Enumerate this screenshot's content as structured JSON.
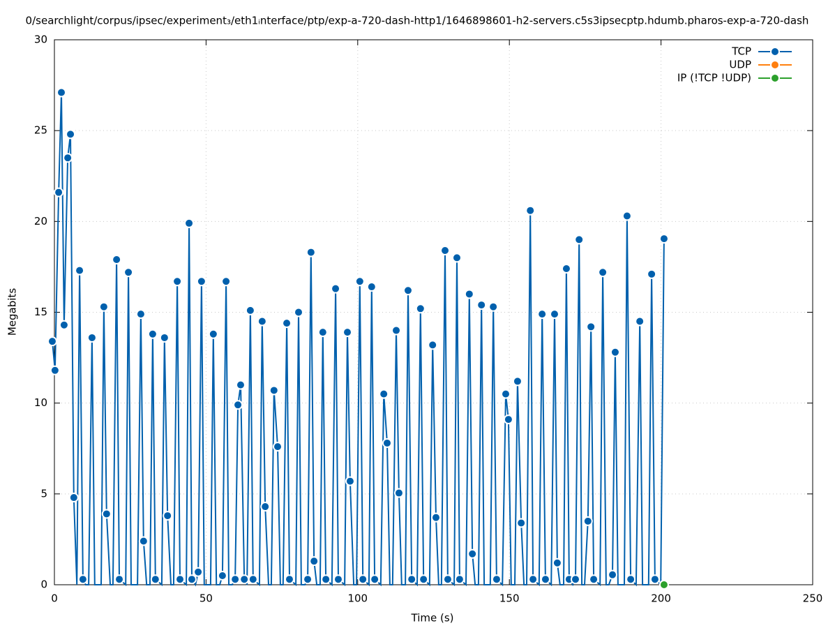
{
  "chart_data": {
    "type": "line",
    "title": "0/searchlight/corpus/ipsec/experiment₃/eth1ᵢnterface/ptp/exp-a-720-dash-http1/1646898601-h2-servers.c5s3ipsecptp.hdumb.pharos-exp-a-720-dash",
    "x_label": "Time (s)",
    "y_label": "Megabits",
    "xlim": [
      0,
      250
    ],
    "xticks": [
      0,
      50,
      100,
      150,
      200,
      250
    ],
    "ylim": [
      0,
      30
    ],
    "yticks": [
      0,
      5,
      10,
      15,
      20,
      25,
      30
    ],
    "grid": true,
    "legend": "top-right",
    "series": [
      {
        "name": "TCP",
        "color": "#0060ad",
        "x": [
          -0.7,
          0.2,
          1.4,
          2.3,
          3.2,
          4.4,
          5.3,
          6.4,
          7.4,
          8.3,
          9.4,
          10.3,
          11.3,
          12.4,
          13.3,
          15.4,
          16.3,
          17.2,
          18.4,
          19.3,
          20.5,
          21.4,
          23.5,
          24.4,
          25.3,
          27.4,
          28.5,
          29.4,
          30.4,
          31.5,
          32.4,
          33.3,
          35.4,
          36.3,
          37.3,
          38.4,
          39.3,
          40.5,
          41.4,
          43.5,
          44.4,
          45.3,
          46.5,
          47.4,
          48.5,
          49.4,
          51.5,
          52.4,
          53.4,
          54.5,
          55.4,
          56.6,
          57.5,
          58.6,
          59.6,
          60.5,
          61.4,
          62.6,
          63.5,
          64.6,
          65.5,
          67.6,
          68.5,
          69.5,
          70.6,
          71.5,
          72.4,
          73.6,
          74.5,
          75.4,
          76.6,
          77.5,
          79.6,
          80.5,
          81.4,
          82.6,
          83.5,
          84.6,
          85.6,
          86.5,
          87.6,
          88.5,
          89.5,
          91.5,
          92.7,
          93.6,
          95.7,
          96.6,
          97.5,
          98.7,
          99.6,
          100.7,
          101.7,
          103.7,
          104.6,
          105.6,
          107.6,
          108.6,
          109.7,
          110.6,
          111.5,
          112.7,
          113.6,
          114.5,
          115.7,
          116.6,
          117.8,
          119.6,
          120.7,
          121.7,
          123.7,
          124.7,
          125.8,
          126.7,
          127.6,
          128.8,
          129.7,
          131.8,
          132.7,
          133.6,
          135.7,
          136.8,
          137.8,
          138.7,
          139.8,
          140.8,
          141.7,
          143.7,
          144.7,
          145.8,
          147.7,
          148.8,
          149.7,
          150.6,
          151.8,
          152.7,
          153.9,
          154.8,
          155.7,
          156.9,
          157.8,
          159.8,
          160.8,
          161.9,
          163.8,
          164.9,
          165.8,
          166.7,
          167.9,
          168.8,
          169.7,
          170.9,
          171.8,
          173.0,
          173.9,
          174.8,
          175.9,
          176.9,
          177.8,
          179.9,
          180.8,
          181.9,
          182.8,
          184.0,
          184.9,
          185.8,
          187.9,
          188.8,
          190.0,
          191.8,
          193.0,
          193.9,
          195.9,
          196.9,
          198.0,
          199.9,
          201.0
        ],
        "values": [
          13.4,
          11.8,
          21.6,
          27.1,
          14.3,
          23.5,
          24.8,
          4.8,
          0,
          17.3,
          0.3,
          0,
          0,
          13.6,
          0,
          0,
          15.3,
          3.9,
          0,
          0,
          17.9,
          0.3,
          0,
          17.2,
          0,
          0,
          14.9,
          2.4,
          0,
          0,
          13.8,
          0.3,
          0,
          13.6,
          3.8,
          0,
          0,
          16.7,
          0.3,
          0,
          19.9,
          0.3,
          0,
          0.7,
          16.7,
          0,
          0,
          13.8,
          0,
          0,
          0.5,
          16.7,
          0,
          0,
          0.3,
          9.9,
          11,
          0.3,
          0,
          15.1,
          0.3,
          0,
          14.5,
          4.3,
          0,
          0,
          10.7,
          7.6,
          0,
          0,
          14.4,
          0.3,
          0,
          15,
          0,
          0,
          0.3,
          18.3,
          1.3,
          0,
          0,
          13.9,
          0.3,
          0,
          16.3,
          0.3,
          0,
          13.9,
          5.7,
          0,
          0,
          16.7,
          0.3,
          0,
          16.4,
          0.3,
          0,
          10.5,
          7.8,
          0,
          0,
          14,
          5.05,
          0,
          0,
          16.2,
          0.3,
          0,
          15.2,
          0.3,
          0,
          13.2,
          3.7,
          0,
          0,
          18.4,
          0.3,
          0,
          18,
          0.3,
          0,
          16,
          1.7,
          0,
          0,
          15.4,
          0,
          0,
          15.3,
          0.3,
          0,
          10.5,
          9.1,
          0,
          0,
          11.2,
          3.4,
          0,
          0,
          20.6,
          0.3,
          0,
          14.9,
          0.3,
          0,
          14.9,
          1.2,
          0,
          0,
          17.4,
          0.3,
          0,
          0.3,
          19,
          0,
          0,
          3.5,
          14.2,
          0.3,
          0,
          17.2,
          0,
          0,
          0.55,
          12.8,
          0,
          0,
          20.3,
          0.3,
          0,
          14.5,
          0,
          0,
          17.1,
          0.3,
          0,
          19.05
        ]
      },
      {
        "name": "UDP",
        "color": "#ff7f0e",
        "x": [],
        "values": []
      },
      {
        "name": "IP (!TCP  !UDP)",
        "color": "#2ca02c",
        "x": [
          201.0
        ],
        "values": [
          0
        ]
      }
    ]
  }
}
